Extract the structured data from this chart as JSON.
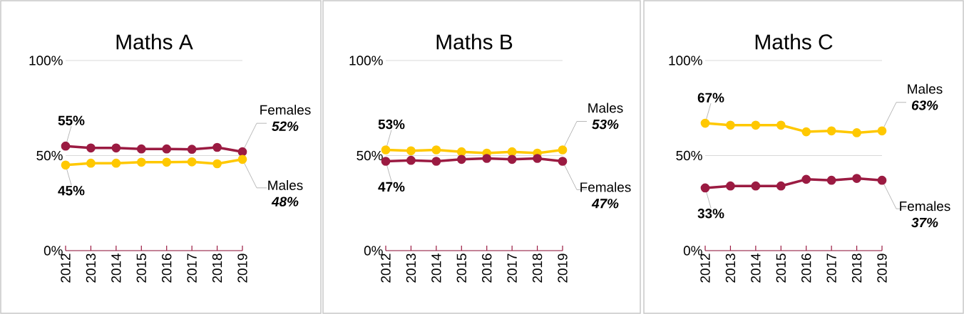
{
  "chart_data": [
    {
      "type": "line",
      "title": "Maths A",
      "categories": [
        "2012",
        "2013",
        "2014",
        "2015",
        "2016",
        "2017",
        "2018",
        "2019"
      ],
      "ylim": [
        0,
        100
      ],
      "yticks": [
        {
          "value": 0,
          "label": "0%"
        },
        {
          "value": 50,
          "label": "50%"
        },
        {
          "value": 100,
          "label": "100%"
        }
      ],
      "grid": "y",
      "marker": "circle",
      "series": [
        {
          "name": "Females",
          "color": "#9b1b42",
          "values": [
            55,
            54,
            54,
            53.5,
            53.5,
            53.3,
            54.3,
            52
          ],
          "value_labels": [
            "55%",
            null,
            null,
            null,
            null,
            null,
            null,
            "52%"
          ]
        },
        {
          "name": "Males",
          "color": "#ffc800",
          "values": [
            45,
            46,
            46,
            46.5,
            46.5,
            46.7,
            45.7,
            48
          ],
          "value_labels": [
            "45%",
            null,
            null,
            null,
            null,
            null,
            null,
            "48%"
          ]
        }
      ]
    },
    {
      "type": "line",
      "title": "Maths B",
      "categories": [
        "2012",
        "2013",
        "2014",
        "2015",
        "2016",
        "2017",
        "2018",
        "2019"
      ],
      "ylim": [
        0,
        100
      ],
      "yticks": [
        {
          "value": 0,
          "label": "0%"
        },
        {
          "value": 50,
          "label": "50%"
        },
        {
          "value": 100,
          "label": "100%"
        }
      ],
      "grid": "y",
      "marker": "circle",
      "series": [
        {
          "name": "Males",
          "color": "#ffc800",
          "values": [
            53,
            52.5,
            53,
            52,
            51.3,
            52,
            51.3,
            53
          ],
          "value_labels": [
            "53%",
            null,
            null,
            null,
            null,
            null,
            null,
            "53%"
          ]
        },
        {
          "name": "Females",
          "color": "#9b1b42",
          "values": [
            47,
            47.5,
            47,
            48,
            48.5,
            48,
            48.5,
            47
          ],
          "value_labels": [
            "47%",
            null,
            null,
            null,
            null,
            null,
            null,
            "47%"
          ]
        }
      ]
    },
    {
      "type": "line",
      "title": "Maths C",
      "categories": [
        "2012",
        "2013",
        "2014",
        "2015",
        "2016",
        "2017",
        "2018",
        "2019"
      ],
      "ylim": [
        0,
        100
      ],
      "yticks": [
        {
          "value": 0,
          "label": "0%"
        },
        {
          "value": 50,
          "label": "50%"
        },
        {
          "value": 100,
          "label": "100%"
        }
      ],
      "grid": "y",
      "marker": "circle",
      "series": [
        {
          "name": "Males",
          "color": "#ffc800",
          "values": [
            67,
            66,
            66,
            66,
            62.5,
            63,
            62,
            63
          ],
          "value_labels": [
            "67%",
            null,
            null,
            null,
            null,
            null,
            null,
            "63%"
          ]
        },
        {
          "name": "Females",
          "color": "#9b1b42",
          "values": [
            33,
            34,
            34,
            34,
            37.5,
            37,
            38,
            37
          ],
          "value_labels": [
            "33%",
            null,
            null,
            null,
            null,
            null,
            null,
            "37%"
          ]
        }
      ]
    }
  ]
}
